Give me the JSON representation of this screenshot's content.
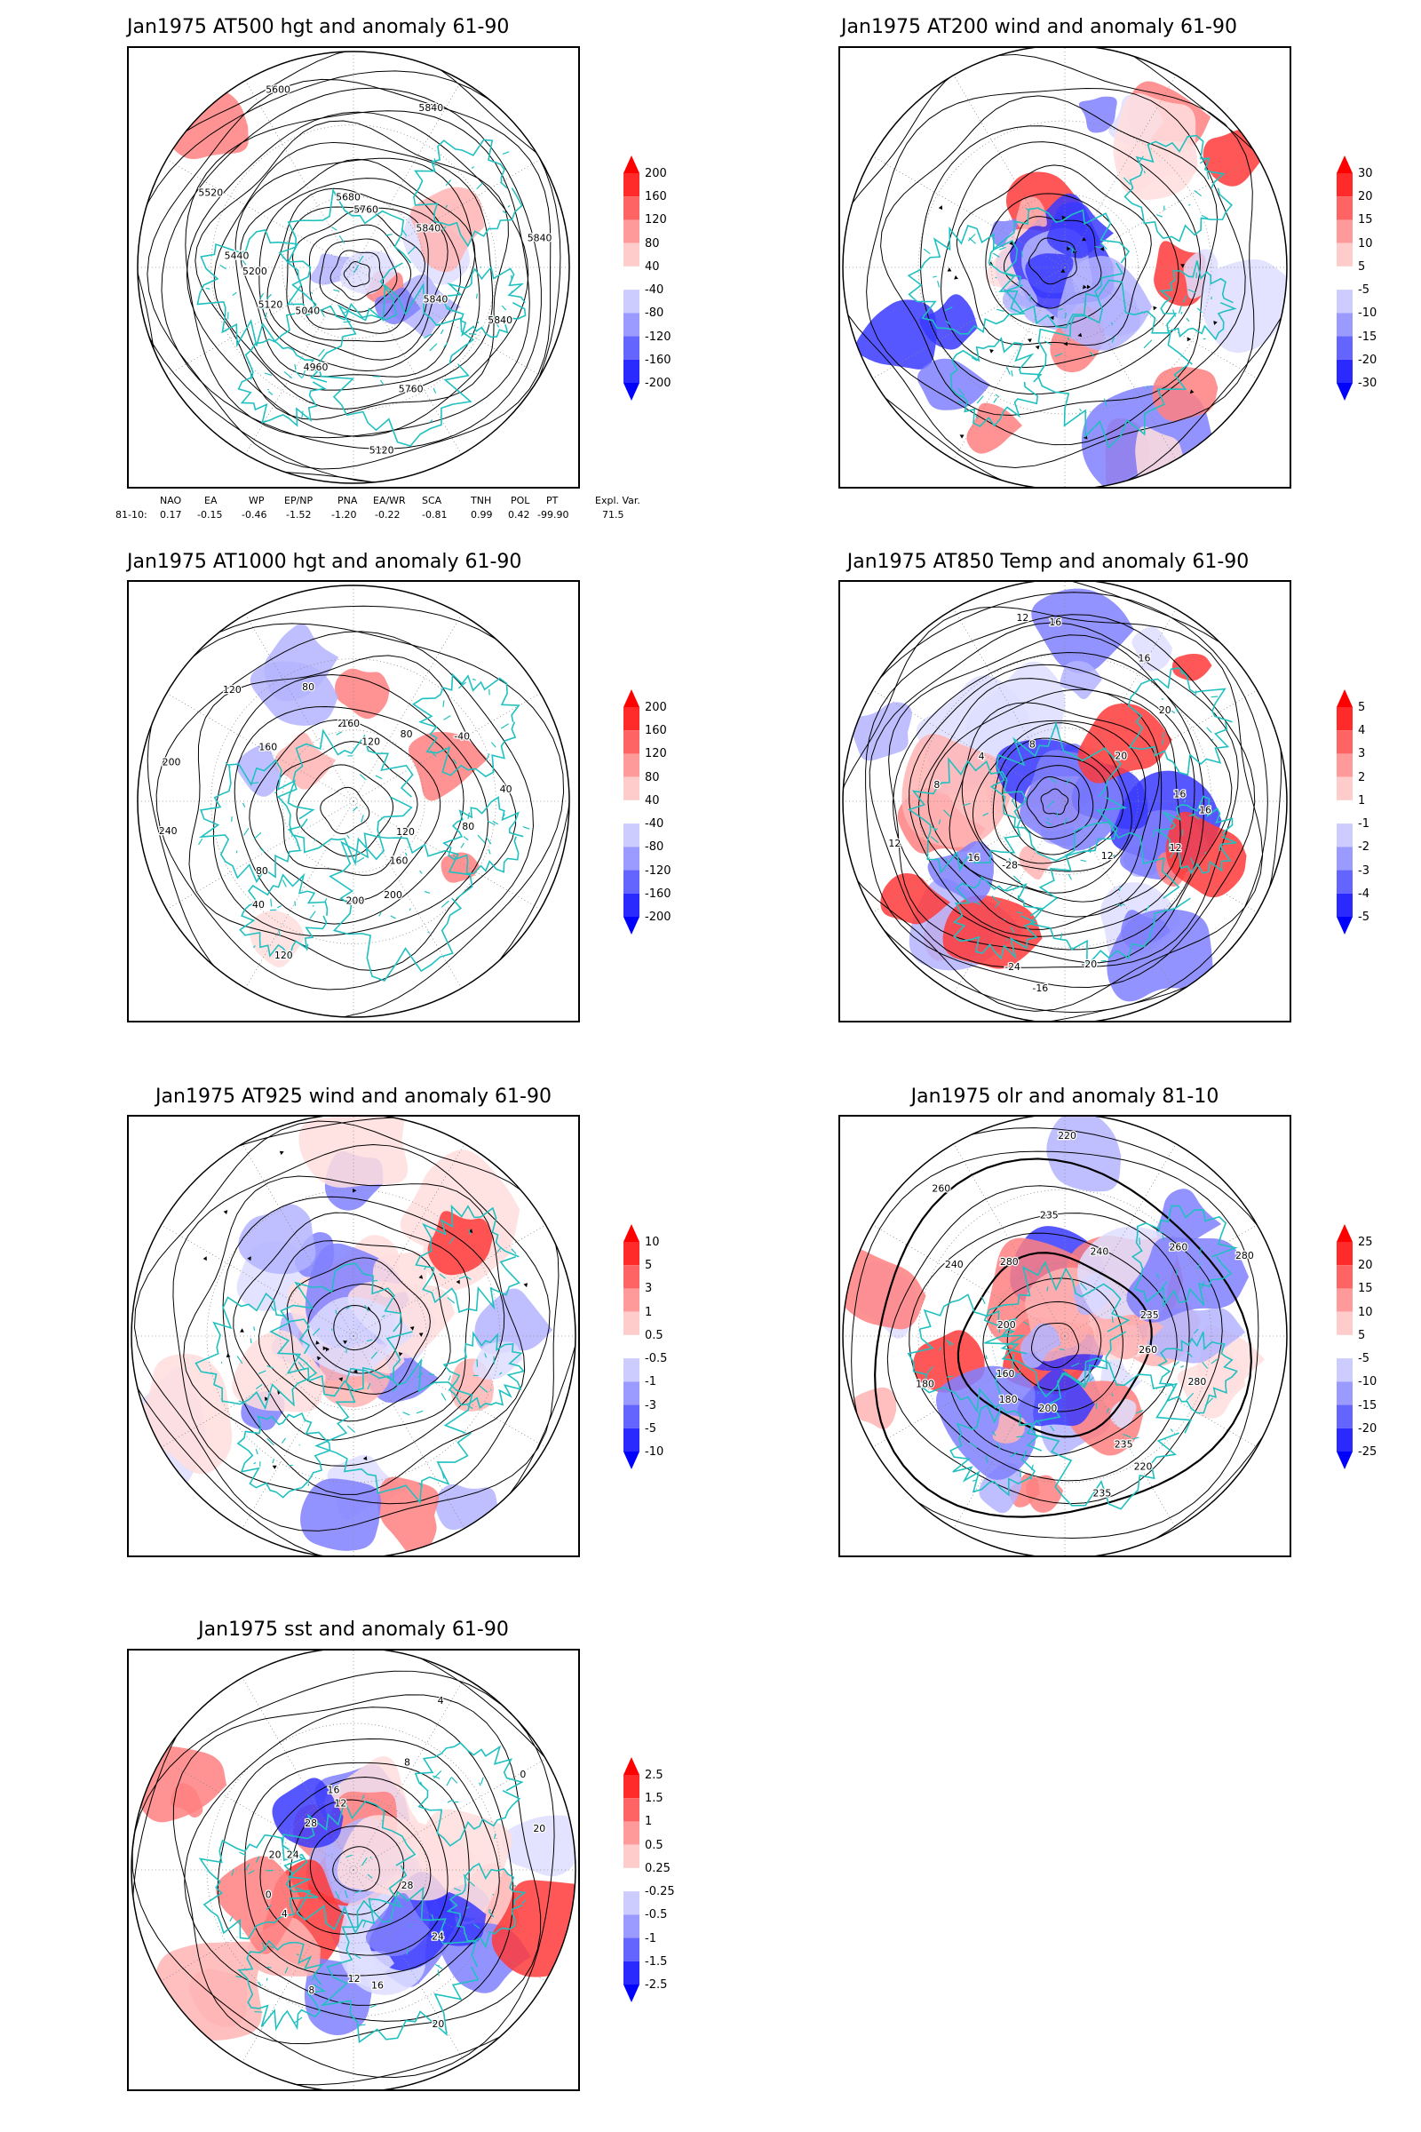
{
  "panels": [
    {
      "id": "at500",
      "title": "Jan1975 AT500 hgt and anomaly 61-90",
      "colorbar_labels": [
        "200",
        "160",
        "120",
        "80",
        "40",
        "-40",
        "-80",
        "-120",
        "-160",
        "-200"
      ],
      "contour_labels": [
        "5840",
        "5840",
        "5760",
        "5120",
        "4960",
        "5040",
        "5120",
        "5200",
        "5440",
        "5520",
        "5600",
        "5680",
        "5760",
        "5840",
        "5840",
        "5840"
      ]
    },
    {
      "id": "at200",
      "title": "Jan1975 AT200 wind and anomaly 61-90",
      "colorbar_labels": [
        "30",
        "20",
        "15",
        "10",
        "5",
        "-5",
        "-10",
        "-15",
        "-20",
        "-30"
      ],
      "contour_labels": []
    },
    {
      "id": "at1000",
      "title": "Jan1975 AT1000 hgt and anomaly 61-90",
      "colorbar_labels": [
        "200",
        "160",
        "120",
        "80",
        "40",
        "-40",
        "-80",
        "-120",
        "-160",
        "-200"
      ],
      "contour_labels": [
        "80",
        "120",
        "160",
        "200",
        "200",
        "120",
        "40",
        "80",
        "240",
        "200",
        "160",
        "120",
        "80",
        "200",
        "160",
        "120",
        "80",
        "-40",
        "40"
      ]
    },
    {
      "id": "at850",
      "title": "Jan1975 AT850 Temp and anomaly 61-90",
      "colorbar_labels": [
        "5",
        "4",
        "3",
        "2",
        "1",
        "-1",
        "-2",
        "-3",
        "-4",
        "-5"
      ],
      "contour_labels": [
        "16",
        "12",
        "12",
        "-20",
        "-16",
        "-24",
        "-28",
        "16",
        "12",
        "8",
        "4",
        "8",
        "12",
        "16",
        "16",
        "20",
        "20",
        "16"
      ]
    },
    {
      "id": "at925",
      "title": "Jan1975 AT925 wind and anomaly 61-90",
      "colorbar_labels": [
        "10",
        "5",
        "3",
        "1",
        "0.5",
        "-0.5",
        "-1",
        "-3",
        "-5",
        "-10"
      ],
      "contour_labels": []
    },
    {
      "id": "olr",
      "title": "Jan1975 olr and anomaly 81-10",
      "colorbar_labels": [
        "25",
        "20",
        "15",
        "10",
        "5",
        "-5",
        "-10",
        "-15",
        "-20",
        "-25"
      ],
      "contour_labels": [
        "260",
        "280",
        "220",
        "235",
        "235",
        "200",
        "180",
        "160",
        "180",
        "200",
        "240",
        "260",
        "280",
        "235",
        "220",
        "240",
        "260",
        "280",
        "235"
      ]
    },
    {
      "id": "sst",
      "title": "Jan1975 sst and anomaly 61-90",
      "colorbar_labels": [
        "2.5",
        "1.5",
        "1",
        "0.5",
        "0.25",
        "-0.25",
        "-0.5",
        "-1",
        "-1.5",
        "-2.5"
      ],
      "contour_labels": [
        "28",
        "24",
        "20",
        "16",
        "12",
        "8",
        "4",
        "0",
        "20",
        "24",
        "28",
        "16",
        "12",
        "8",
        "4",
        "0",
        "20"
      ]
    }
  ],
  "teleconnections": {
    "headers": [
      "NAO",
      "EA",
      "WP",
      "EP/NP",
      "PNA",
      "EA/WR",
      "SCA",
      "TNH",
      "POL",
      "PT",
      "Expl. Var."
    ],
    "row_label": "81-10:",
    "values": [
      "0.17",
      "-0.15",
      "-0.46",
      "-1.52",
      "-1.20",
      "-0.22",
      "-0.81",
      "0.99",
      "0.42",
      "-99.90",
      "71.5"
    ]
  },
  "colors": {
    "land": "#20c0c0",
    "contour": "#000000",
    "pos_strong": "#ff0000",
    "pos_weak": "#ffdcdc",
    "neg_weak": "#dcdcff",
    "neg_strong": "#0000ff"
  }
}
